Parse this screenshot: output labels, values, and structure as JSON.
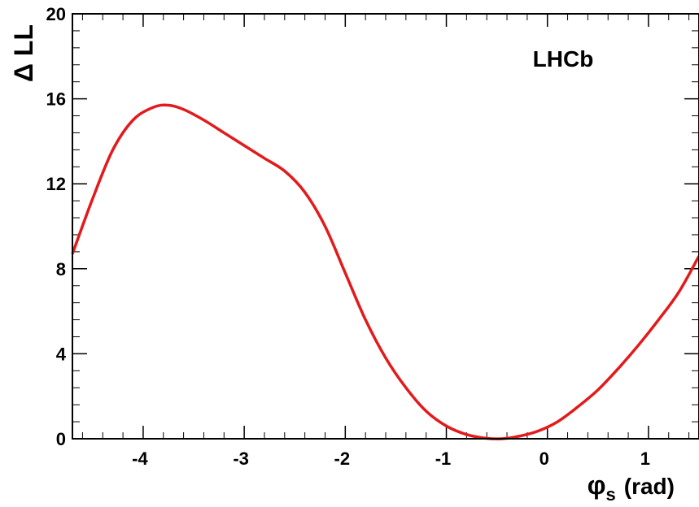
{
  "chart_data": {
    "type": "line",
    "title": "",
    "annotation": "LHCb",
    "xlabel": {
      "symbol": "φ",
      "subscript": "s",
      "unit": "(rad)"
    },
    "ylabel": "Δ LL",
    "xlim": [
      -4.7,
      1.5
    ],
    "ylim": [
      0,
      20
    ],
    "x_ticks": [
      -4,
      -3,
      -2,
      -1,
      0,
      1
    ],
    "x_tick_labels": [
      "-4",
      "-3",
      "-2",
      "-1",
      "0",
      "1"
    ],
    "y_ticks": [
      0,
      4,
      8,
      12,
      16,
      20
    ],
    "y_tick_labels": [
      "0",
      "4",
      "8",
      "12",
      "16",
      "20"
    ],
    "grid": false,
    "series": [
      {
        "color": "#e31a1c",
        "x": [
          -4.7,
          -4.5,
          -4.3,
          -4.1,
          -3.9,
          -3.75,
          -3.6,
          -3.4,
          -3.2,
          -3.0,
          -2.8,
          -2.6,
          -2.4,
          -2.2,
          -2.0,
          -1.8,
          -1.6,
          -1.4,
          -1.2,
          -1.0,
          -0.8,
          -0.6,
          -0.45,
          -0.3,
          -0.1,
          0.1,
          0.3,
          0.5,
          0.7,
          0.9,
          1.1,
          1.3,
          1.5
        ],
        "y": [
          8.7,
          11.3,
          13.6,
          15.0,
          15.6,
          15.7,
          15.5,
          15.0,
          14.4,
          13.8,
          13.2,
          12.6,
          11.6,
          10.0,
          7.8,
          5.6,
          3.8,
          2.4,
          1.3,
          0.6,
          0.2,
          0.02,
          0.0,
          0.1,
          0.35,
          0.8,
          1.5,
          2.3,
          3.3,
          4.4,
          5.6,
          6.9,
          8.6
        ]
      }
    ]
  }
}
